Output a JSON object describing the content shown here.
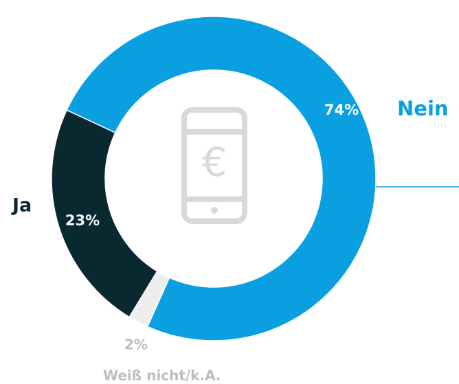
{
  "chart_data": {
    "type": "donut",
    "categories": [
      "Nein",
      "Weiß nicht/k.A.",
      "Ja"
    ],
    "values": [
      74,
      2,
      23
    ],
    "value_labels": [
      "74%",
      "2%",
      "23%"
    ],
    "colors": [
      "#0a9fe0",
      "#eeeeee",
      "#0a2830"
    ]
  }
}
